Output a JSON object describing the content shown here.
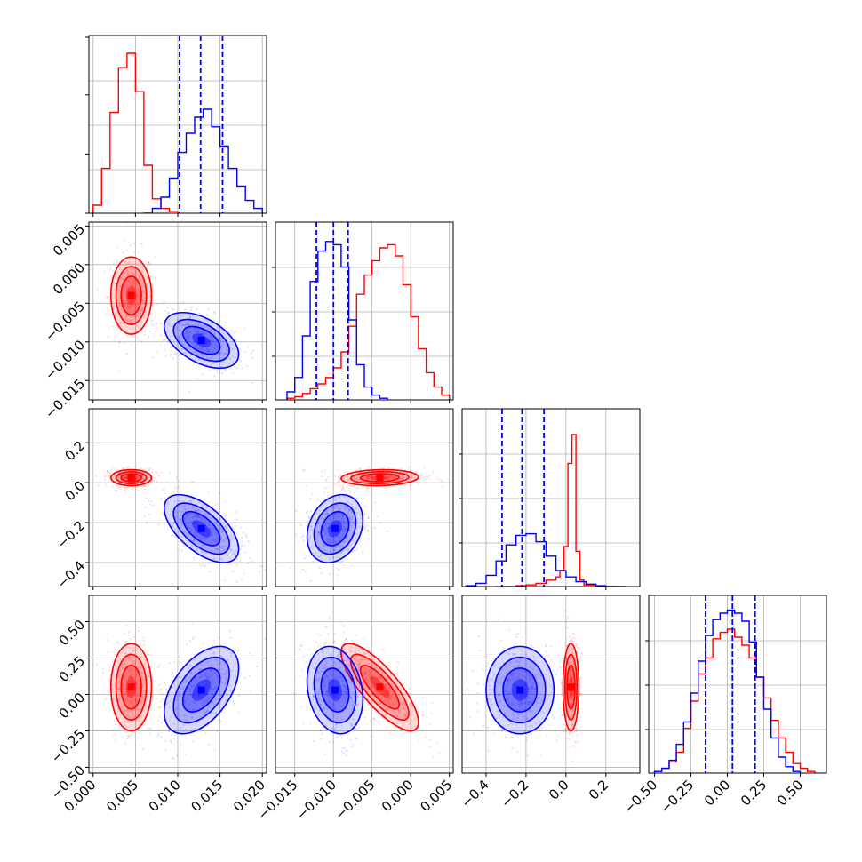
{
  "colors": {
    "red": "#ff0000",
    "blue": "#0000ff",
    "grid": "#b0b0b0"
  },
  "chart_data": {
    "type": "corner",
    "parameters": [
      {
        "range": [
          -0.0005,
          0.0205
        ],
        "ticks": [
          0.0,
          0.005,
          0.01,
          0.015,
          0.02
        ],
        "tick_labels": [
          "0.000",
          "0.005",
          "0.010",
          "0.015",
          "0.020"
        ]
      },
      {
        "range": [
          -0.0175,
          0.0055
        ],
        "ticks": [
          -0.015,
          -0.01,
          -0.005,
          0.0,
          0.005
        ],
        "tick_labels": [
          "−0.015",
          "−0.010",
          "−0.005",
          "0.000",
          "0.005"
        ]
      },
      {
        "range": [
          -0.52,
          0.37
        ],
        "ticks": [
          -0.4,
          -0.2,
          0.0,
          0.2
        ],
        "tick_labels": [
          "−0.4",
          "−0.2",
          "0.0",
          "0.2"
        ]
      },
      {
        "range": [
          -0.54,
          0.68
        ],
        "ticks": [
          -0.5,
          -0.25,
          0.0,
          0.25,
          0.5
        ],
        "tick_labels": [
          "−0.50",
          "−0.25",
          "0.00",
          "0.25",
          "0.50"
        ]
      }
    ],
    "series": [
      {
        "color": "#ff0000",
        "histograms": [
          {
            "edges": [
              0.0,
              0.001,
              0.002,
              0.003,
              0.004,
              0.005,
              0.006,
              0.007,
              0.008,
              0.009,
              0.01
            ],
            "counts": [
              0.05,
              0.28,
              0.63,
              0.91,
              1.0,
              0.76,
              0.3,
              0.09,
              0.03,
              0.01
            ],
            "quantiles": []
          },
          {
            "edges": [
              -0.016,
              -0.015,
              -0.014,
              -0.013,
              -0.012,
              -0.011,
              -0.01,
              -0.009,
              -0.008,
              -0.007,
              -0.006,
              -0.005,
              -0.004,
              -0.003,
              -0.002,
              -0.001,
              0.0,
              0.001,
              0.002,
              0.003,
              0.004,
              0.005
            ],
            "counts": [
              0.01,
              0.02,
              0.04,
              0.07,
              0.1,
              0.14,
              0.2,
              0.3,
              0.46,
              0.66,
              0.78,
              0.87,
              0.95,
              0.97,
              0.9,
              0.72,
              0.52,
              0.32,
              0.17,
              0.08,
              0.03
            ],
            "quantiles": []
          },
          {
            "edges": [
              -0.35,
              -0.3,
              -0.25,
              -0.2,
              -0.15,
              -0.1,
              -0.05,
              -0.03,
              -0.01,
              0.01,
              0.03,
              0.05,
              0.07,
              0.09,
              0.15,
              0.25
            ],
            "counts": [
              0.0,
              0.0,
              0.005,
              0.01,
              0.02,
              0.04,
              0.06,
              0.1,
              0.25,
              0.77,
              0.95,
              0.22,
              0.04,
              0.01,
              0.0
            ],
            "quantiles": []
          },
          {
            "edges": [
              -0.5,
              -0.45,
              -0.4,
              -0.35,
              -0.3,
              -0.25,
              -0.2,
              -0.15,
              -0.1,
              -0.05,
              0.0,
              0.05,
              0.1,
              0.15,
              0.2,
              0.25,
              0.3,
              0.35,
              0.4,
              0.45,
              0.5,
              0.55,
              0.6
            ],
            "counts": [
              0.01,
              0.03,
              0.07,
              0.13,
              0.28,
              0.45,
              0.62,
              0.72,
              0.84,
              0.88,
              0.9,
              0.85,
              0.8,
              0.72,
              0.6,
              0.47,
              0.33,
              0.22,
              0.13,
              0.06,
              0.03,
              0.01
            ],
            "quantiles": []
          }
        ],
        "centers": [
          0.0045,
          -0.004,
          0.025,
          0.05
        ],
        "stdevs": [
          0.0012,
          0.0025,
          0.02,
          0.15
        ],
        "correlations": {
          "1_0": 0.0,
          "2_0": 0.0,
          "2_1": 0.1,
          "3_0": 0.0,
          "3_1": -0.8,
          "3_2": 0.0
        }
      },
      {
        "color": "#0000ff",
        "histograms": [
          {
            "edges": [
              0.006,
              0.007,
              0.008,
              0.009,
              0.01,
              0.011,
              0.012,
              0.013,
              0.014,
              0.015,
              0.016,
              0.017,
              0.018,
              0.019,
              0.02
            ],
            "counts": [
              0.0,
              0.03,
              0.1,
              0.22,
              0.38,
              0.5,
              0.6,
              0.65,
              0.54,
              0.42,
              0.28,
              0.17,
              0.08,
              0.03
            ],
            "quantiles": [
              0.0102,
              0.0127,
              0.0153
            ]
          },
          {
            "edges": [
              -0.016,
              -0.015,
              -0.014,
              -0.013,
              -0.012,
              -0.011,
              -0.01,
              -0.009,
              -0.008,
              -0.007,
              -0.006,
              -0.005,
              -0.004,
              -0.003
            ],
            "counts": [
              0.05,
              0.14,
              0.4,
              0.74,
              0.93,
              0.99,
              0.97,
              0.83,
              0.5,
              0.22,
              0.08,
              0.03,
              0.01
            ],
            "quantiles": [
              -0.0122,
              -0.01,
              -0.0081
            ]
          },
          {
            "edges": [
              -0.5,
              -0.45,
              -0.4,
              -0.35,
              -0.3,
              -0.25,
              -0.2,
              -0.15,
              -0.1,
              -0.05,
              0.0,
              0.05,
              0.1,
              0.15,
              0.2,
              0.25,
              0.3
            ],
            "counts": [
              0.005,
              0.02,
              0.07,
              0.16,
              0.26,
              0.32,
              0.33,
              0.28,
              0.19,
              0.1,
              0.06,
              0.03,
              0.015,
              0.005,
              0.0,
              0.0
            ],
            "quantiles": [
              -0.32,
              -0.22,
              -0.11
            ]
          },
          {
            "edges": [
              -0.5,
              -0.45,
              -0.4,
              -0.35,
              -0.3,
              -0.25,
              -0.2,
              -0.15,
              -0.1,
              -0.05,
              0.0,
              0.05,
              0.1,
              0.15,
              0.2,
              0.25,
              0.3,
              0.35,
              0.4,
              0.45,
              0.5
            ],
            "counts": [
              0.01,
              0.03,
              0.08,
              0.18,
              0.32,
              0.5,
              0.7,
              0.86,
              0.96,
              1.0,
              1.02,
              1.0,
              0.95,
              0.82,
              0.6,
              0.4,
              0.22,
              0.1,
              0.04,
              0.01
            ],
            "quantiles": [
              -0.15,
              0.035,
              0.19
            ]
          }
        ],
        "centers": [
          0.0128,
          -0.0098,
          -0.23,
          0.03
        ],
        "stdevs": [
          0.0022,
          0.0018,
          0.085,
          0.15
        ],
        "correlations": {
          "1_0": -0.5,
          "2_0": -0.6,
          "2_1": 0.25,
          "3_0": 0.5,
          "3_1": -0.2,
          "3_2": 0.0
        }
      }
    ],
    "contour_levels": [
      0.5,
      1.0,
      1.5,
      2.0
    ],
    "grid": true
  }
}
